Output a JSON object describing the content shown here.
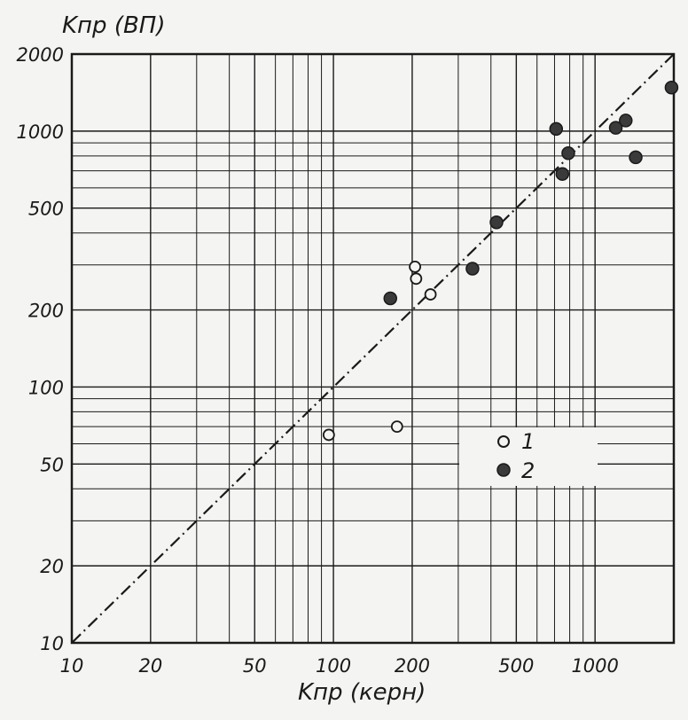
{
  "chart_data": {
    "type": "scatter",
    "title": "",
    "xlabel": "Kпр (керн)",
    "ylabel": "Kпр (ВП)",
    "x_scale": "log",
    "y_scale": "log",
    "xlim": [
      10,
      2000
    ],
    "ylim": [
      10,
      2000
    ],
    "grid": true,
    "x_ticks": [
      10,
      20,
      50,
      100,
      200,
      500,
      1000
    ],
    "x_tick_labels": [
      "10",
      "20",
      "50",
      "100",
      "200",
      "500",
      "1000"
    ],
    "y_ticks": [
      10,
      20,
      50,
      100,
      200,
      500,
      1000,
      2000
    ],
    "y_tick_labels": [
      "10",
      "20",
      "50",
      "100",
      "200",
      "500",
      "1000",
      "2000"
    ],
    "reference_line": {
      "style": "dash-dot",
      "x": [
        10,
        2000
      ],
      "y": [
        10,
        2000
      ]
    },
    "legend_position": "lower-right",
    "series": [
      {
        "name": "1",
        "marker": "open-circle",
        "points": [
          {
            "x": 205,
            "y": 295
          },
          {
            "x": 207,
            "y": 265
          },
          {
            "x": 235,
            "y": 230
          },
          {
            "x": 96,
            "y": 65
          },
          {
            "x": 175,
            "y": 70
          }
        ]
      },
      {
        "name": "2",
        "marker": "filled-circle",
        "points": [
          {
            "x": 165,
            "y": 222
          },
          {
            "x": 340,
            "y": 290
          },
          {
            "x": 420,
            "y": 440
          },
          {
            "x": 710,
            "y": 1020
          },
          {
            "x": 750,
            "y": 680
          },
          {
            "x": 790,
            "y": 820
          },
          {
            "x": 1200,
            "y": 1030
          },
          {
            "x": 1310,
            "y": 1100
          },
          {
            "x": 1430,
            "y": 790
          },
          {
            "x": 1960,
            "y": 1480
          }
        ]
      }
    ]
  },
  "colors": {
    "background": "#f4f4f2",
    "ink": "#1a1a1a",
    "filled_marker": "#3a3a3a"
  }
}
